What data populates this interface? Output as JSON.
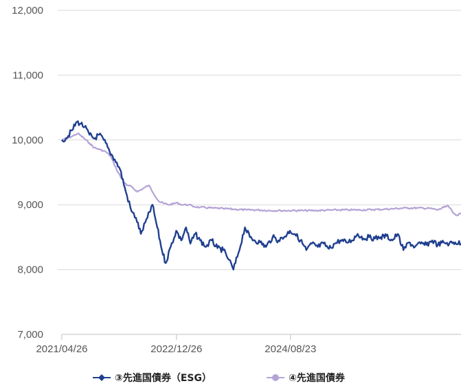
{
  "chart_data": {
    "type": "line",
    "x_range": [
      "2021/04/26",
      "2027/02/15"
    ],
    "x_ticks": [
      "2021/04/26",
      "2022/12/26",
      "2024/08/23"
    ],
    "ylim": [
      7000,
      12000
    ],
    "y_ticks": [
      "7,000",
      "8,000",
      "9,000",
      "10,000",
      "11,000",
      "12,000"
    ],
    "grid": "horizontal",
    "legend_position": "bottom",
    "series": [
      {
        "name": "③先進国債券（ESG）",
        "color": "#1f3f8f",
        "marker": "diamond",
        "points": [
          [
            "2021/04/26",
            10000
          ],
          [
            "2021/05/20",
            10030
          ],
          [
            "2021/06/20",
            10150
          ],
          [
            "2021/07/15",
            10280
          ],
          [
            "2021/08/05",
            10250
          ],
          [
            "2021/08/25",
            10200
          ],
          [
            "2021/09/20",
            10080
          ],
          [
            "2021/10/15",
            10020
          ],
          [
            "2021/11/10",
            10080
          ],
          [
            "2021/12/05",
            10000
          ],
          [
            "2022/01/05",
            9820
          ],
          [
            "2022/02/01",
            9700
          ],
          [
            "2022/03/01",
            9550
          ],
          [
            "2022/04/01",
            9200
          ],
          [
            "2022/05/01",
            8900
          ],
          [
            "2022/05/25",
            8800
          ],
          [
            "2022/06/20",
            8550
          ],
          [
            "2022/07/25",
            8800
          ],
          [
            "2022/08/20",
            9000
          ],
          [
            "2022/09/15",
            8650
          ],
          [
            "2022/10/10",
            8300
          ],
          [
            "2022/10/30",
            8100
          ],
          [
            "2022/11/25",
            8350
          ],
          [
            "2022/12/25",
            8600
          ],
          [
            "2023/01/20",
            8450
          ],
          [
            "2023/02/15",
            8650
          ],
          [
            "2023/03/10",
            8400
          ],
          [
            "2023/04/05",
            8550
          ],
          [
            "2023/05/01",
            8450
          ],
          [
            "2023/06/01",
            8350
          ],
          [
            "2023/07/01",
            8450
          ],
          [
            "2023/08/01",
            8330
          ],
          [
            "2023/09/01",
            8300
          ],
          [
            "2023/10/01",
            8150
          ],
          [
            "2023/10/25",
            8000
          ],
          [
            "2023/11/20",
            8250
          ],
          [
            "2023/12/25",
            8650
          ],
          [
            "2024/01/20",
            8500
          ],
          [
            "2024/02/15",
            8450
          ],
          [
            "2024/03/15",
            8420
          ],
          [
            "2024/04/15",
            8350
          ],
          [
            "2024/05/20",
            8500
          ],
          [
            "2024/06/20",
            8450
          ],
          [
            "2024/07/20",
            8500
          ],
          [
            "2024/08/20",
            8600
          ],
          [
            "2024/09/15",
            8550
          ],
          [
            "2024/10/15",
            8450
          ],
          [
            "2024/11/15",
            8300
          ],
          [
            "2024/12/15",
            8400
          ],
          [
            "2025/01/15",
            8350
          ],
          [
            "2025/02/15",
            8400
          ],
          [
            "2025/03/15",
            8320
          ],
          [
            "2025/04/15",
            8400
          ],
          [
            "2025/05/15",
            8450
          ],
          [
            "2025/06/15",
            8420
          ],
          [
            "2025/07/15",
            8450
          ],
          [
            "2025/08/15",
            8550
          ],
          [
            "2025/09/15",
            8480
          ],
          [
            "2025/10/15",
            8500
          ],
          [
            "2025/11/15",
            8480
          ],
          [
            "2025/12/15",
            8500
          ],
          [
            "2026/01/15",
            8520
          ],
          [
            "2026/02/15",
            8450
          ],
          [
            "2026/03/15",
            8550
          ],
          [
            "2026/04/15",
            8300
          ],
          [
            "2026/05/15",
            8420
          ],
          [
            "2026/06/15",
            8350
          ],
          [
            "2026/07/15",
            8400
          ],
          [
            "2026/08/15",
            8380
          ],
          [
            "2026/09/15",
            8450
          ],
          [
            "2026/10/15",
            8380
          ],
          [
            "2026/11/15",
            8420
          ],
          [
            "2026/12/15",
            8400
          ],
          [
            "2027/01/15",
            8420
          ],
          [
            "2027/02/15",
            8400
          ]
        ]
      },
      {
        "name": "④先進国債券",
        "color": "#b4a3d6",
        "marker": "circle",
        "points": [
          [
            "2021/04/26",
            10000
          ],
          [
            "2021/06/15",
            10050
          ],
          [
            "2021/07/20",
            10100
          ],
          [
            "2021/08/20",
            10030
          ],
          [
            "2021/09/20",
            9950
          ],
          [
            "2021/10/15",
            9880
          ],
          [
            "2021/11/15",
            9850
          ],
          [
            "2021/12/15",
            9820
          ],
          [
            "2022/01/10",
            9750
          ],
          [
            "2022/02/10",
            9550
          ],
          [
            "2022/03/10",
            9400
          ],
          [
            "2022/04/05",
            9300
          ],
          [
            "2022/05/01",
            9280
          ],
          [
            "2022/06/01",
            9200
          ],
          [
            "2022/07/01",
            9250
          ],
          [
            "2022/08/01",
            9300
          ],
          [
            "2022/08/25",
            9180
          ],
          [
            "2022/09/25",
            9050
          ],
          [
            "2022/10/20",
            9020
          ],
          [
            "2022/11/20",
            9000
          ],
          [
            "2022/12/26",
            9030
          ],
          [
            "2023/01/25",
            9000
          ],
          [
            "2023/03/01",
            9000
          ],
          [
            "2023/04/01",
            8970
          ],
          [
            "2023/05/01",
            8960
          ],
          [
            "2023/07/01",
            8950
          ],
          [
            "2023/09/01",
            8940
          ],
          [
            "2023/11/01",
            8930
          ],
          [
            "2024/01/01",
            8920
          ],
          [
            "2024/03/01",
            8920
          ],
          [
            "2024/05/01",
            8910
          ],
          [
            "2024/07/01",
            8910
          ],
          [
            "2024/09/01",
            8910
          ],
          [
            "2024/11/01",
            8910
          ],
          [
            "2025/01/01",
            8910
          ],
          [
            "2025/03/01",
            8915
          ],
          [
            "2025/05/01",
            8920
          ],
          [
            "2025/07/01",
            8920
          ],
          [
            "2025/09/01",
            8920
          ],
          [
            "2025/11/01",
            8925
          ],
          [
            "2026/01/01",
            8930
          ],
          [
            "2026/03/01",
            8940
          ],
          [
            "2026/05/01",
            8950
          ],
          [
            "2026/07/01",
            8950
          ],
          [
            "2026/09/01",
            8945
          ],
          [
            "2026/10/15",
            8920
          ],
          [
            "2026/11/15",
            8960
          ],
          [
            "2026/12/10",
            8980
          ],
          [
            "2027/01/05",
            8870
          ],
          [
            "2027/01/25",
            8840
          ],
          [
            "2027/02/15",
            8860
          ]
        ]
      }
    ]
  }
}
